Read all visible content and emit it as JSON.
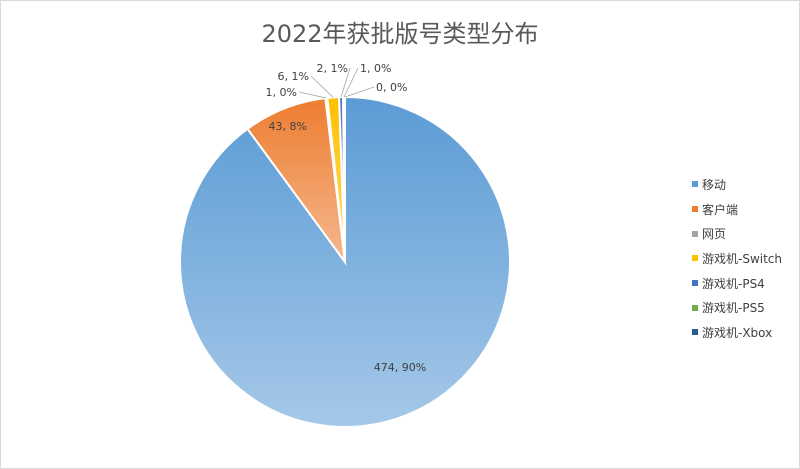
{
  "chart_data": {
    "type": "pie",
    "title": "2022年获批版号类型分布",
    "categories": [
      "移动",
      "客户端",
      "网页",
      "游戏机-Switch",
      "游戏机-PS4",
      "游戏机-PS5",
      "游戏机-Xbox"
    ],
    "values": [
      474,
      43,
      1,
      6,
      2,
      1,
      0
    ],
    "percent_labels": [
      "90%",
      "8%",
      "0%",
      "1%",
      "1%",
      "0%",
      "0%"
    ],
    "data_labels": [
      "474, 90%",
      "43, 8%",
      "1, 0%",
      "6, 1%",
      "2, 1%",
      "1, 0%",
      "0, 0%"
    ],
    "colors": [
      "#5b9bd5",
      "#ed7d31",
      "#a5a5a5",
      "#ffc000",
      "#4472c4",
      "#70ad47",
      "#255e91"
    ],
    "legend_position": "right",
    "start_angle": "12 o'clock, clockwise"
  }
}
